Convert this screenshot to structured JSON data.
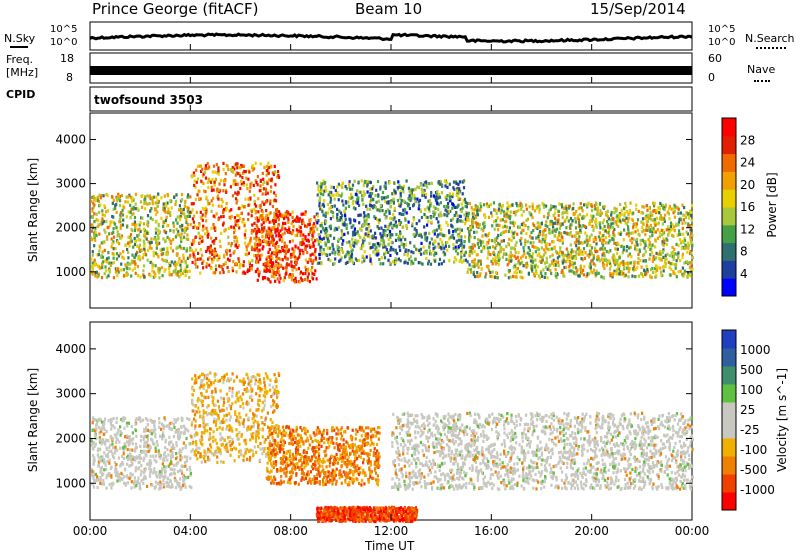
{
  "header": {
    "station": "Prince George (fitACF)",
    "beam": "Beam 10",
    "date": "15/Sep/2014"
  },
  "noise_panel": {
    "left_label": "N.Sky",
    "right_label": "N.Search",
    "left_ticks": [
      "10^5",
      "10^0"
    ],
    "right_ticks": [
      "10^5",
      "10^0"
    ]
  },
  "freq_panel": {
    "left_label_top": "Freq.",
    "left_label_bottom": "[MHz]",
    "right_label": "Nave",
    "left_ticks": [
      "18",
      "8"
    ],
    "right_ticks": [
      "60",
      "0"
    ]
  },
  "cpid": {
    "label": "CPID",
    "value": "twofsound 3503"
  },
  "xaxis": {
    "label": "Time UT",
    "ticks": [
      "00:00",
      "04:00",
      "08:00",
      "12:00",
      "16:00",
      "20:00",
      "00:00"
    ]
  },
  "chart_data": [
    {
      "type": "heatmap",
      "panel": "power",
      "ylabel": "Slant Range [km]",
      "colorbar_label": "Power [dB]",
      "ylim": [
        180,
        4600
      ],
      "xlim_hours": [
        0,
        24
      ],
      "yticks": [
        1000,
        2000,
        3000,
        4000
      ],
      "colorbar_ticks": [
        "28",
        "24",
        "20",
        "16",
        "12",
        "8",
        "4"
      ],
      "colorbar_colors": [
        "#0000ff",
        "#1f3fa0",
        "#2f6f6f",
        "#46a046",
        "#a8c83c",
        "#e8d000",
        "#f0a000",
        "#f06a00",
        "#e02000",
        "#ff0000"
      ],
      "echo_bands": [
        {
          "t_start": 0,
          "t_end": 4,
          "range_min": 900,
          "range_max": 2800,
          "typical_power_db": 16
        },
        {
          "t_start": 4,
          "t_end": 7.5,
          "range_min": 1000,
          "range_max": 3500,
          "typical_power_db": 24
        },
        {
          "t_start": 6.5,
          "t_end": 9,
          "range_min": 800,
          "range_max": 2400,
          "typical_power_db": 28
        },
        {
          "t_start": 9,
          "t_end": 15,
          "range_min": 1200,
          "range_max": 3100,
          "typical_power_db": 10
        },
        {
          "t_start": 15,
          "t_end": 24,
          "range_min": 900,
          "range_max": 2600,
          "typical_power_db": 16
        }
      ]
    },
    {
      "type": "heatmap",
      "panel": "velocity",
      "ylabel": "Slant Range [km]",
      "colorbar_label": "Velocity [m s^-1]",
      "ylim": [
        180,
        4600
      ],
      "xlim_hours": [
        0,
        24
      ],
      "yticks": [
        1000,
        2000,
        3000,
        4000
      ],
      "colorbar_ticks": [
        "1000",
        "500",
        "100",
        "25",
        "-25",
        "-100",
        "-500",
        "-1000"
      ],
      "colorbar_colors": [
        "#ff0000",
        "#f04000",
        "#f08000",
        "#f0b000",
        "#c8c8c0",
        "#c8c8c0",
        "#60c040",
        "#3f8f6f",
        "#2f5fa0",
        "#1f3fc0"
      ],
      "echo_bands": [
        {
          "t_start": 0,
          "t_end": 4,
          "range_min": 900,
          "range_max": 2500,
          "typical_velocity": 0
        },
        {
          "t_start": 4,
          "t_end": 7.5,
          "range_min": 1500,
          "range_max": 3500,
          "typical_velocity": -100
        },
        {
          "t_start": 7,
          "t_end": 11.5,
          "range_min": 1000,
          "range_max": 2300,
          "typical_velocity": -300
        },
        {
          "t_start": 12,
          "t_end": 24,
          "range_min": 900,
          "range_max": 2600,
          "typical_velocity": 0
        },
        {
          "t_start": 9,
          "t_end": 13,
          "range_min": 180,
          "range_max": 500,
          "typical_velocity": -500
        }
      ]
    }
  ]
}
